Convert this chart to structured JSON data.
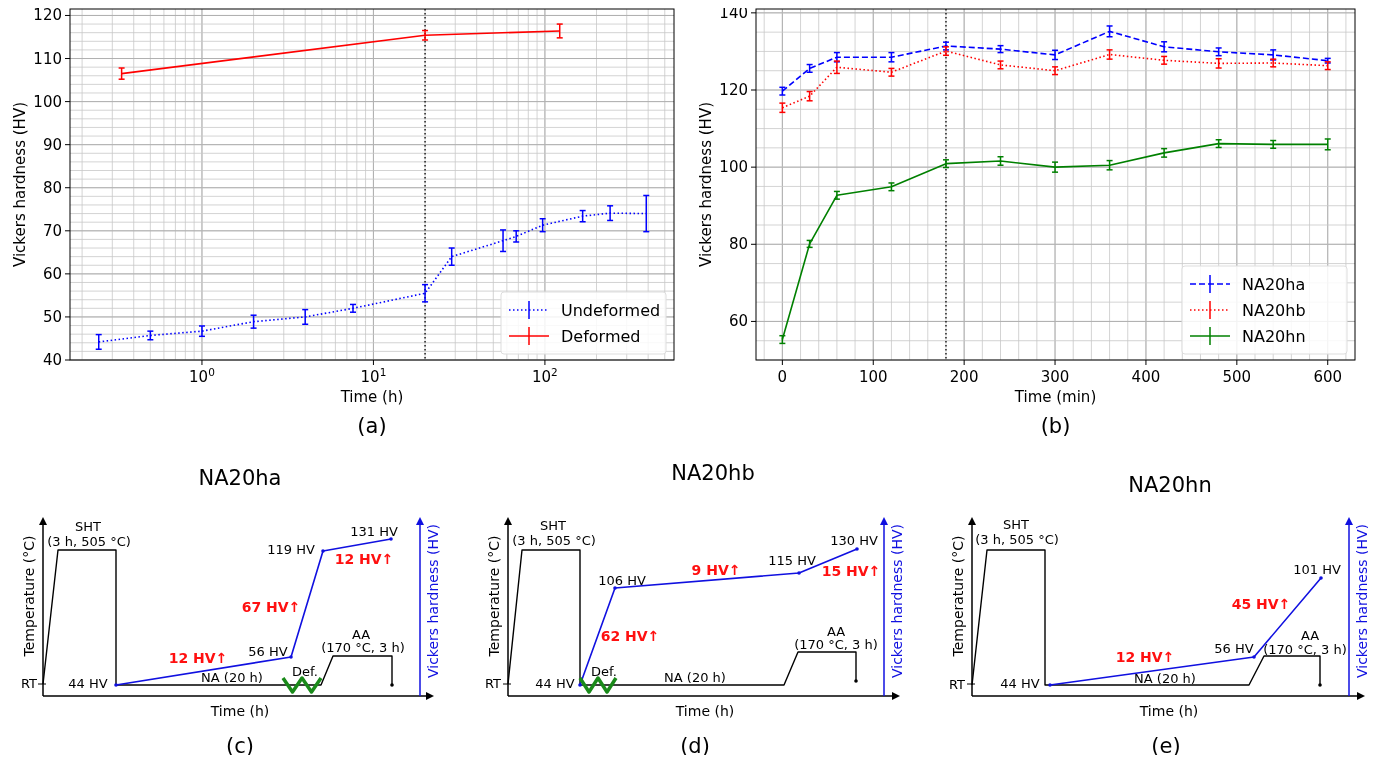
{
  "chart_data": [
    {
      "type": "line",
      "xlabel": "Time (h)",
      "ylabel": "Vickers hardness (HV)",
      "log": "x",
      "xlim": [
        0.17,
        566
      ],
      "ylim": [
        40,
        121.5
      ],
      "xticks": [
        {
          "value": 1,
          "label": "10$^{0}$"
        },
        {
          "value": 10,
          "label": "10$^{1}$"
        },
        {
          "value": 100,
          "label": "10$^{2}$"
        }
      ],
      "yticks": [
        40,
        50,
        60,
        70,
        80,
        90,
        100,
        110,
        120
      ],
      "grid": true,
      "legend": "bottom right",
      "marker": "none",
      "series": [
        {
          "name": "Undeformed",
          "color": "#0000ff",
          "line_style": "dotted",
          "x": [
            0.25,
            0.5,
            1,
            2,
            4,
            7.6,
            20,
            28.6,
            57,
            68,
            97,
            166,
            240,
            390
          ],
          "values": [
            44.2,
            45.7,
            46.7,
            48.9,
            50,
            52,
            55.5,
            64,
            67.7,
            68.7,
            71.3,
            73.4,
            74.1,
            74
          ],
          "errors": [
            1.7,
            1,
            1.2,
            1.5,
            1.7,
            0.9,
            2,
            2,
            2.5,
            1.3,
            1.5,
            1.3,
            1.7,
            4.2
          ]
        },
        {
          "name": "Deformed",
          "color": "#ff0000",
          "line_style": "solid",
          "x": [
            0.34,
            20,
            122
          ],
          "values": [
            106.5,
            115.4,
            116.4
          ],
          "errors": [
            1.3,
            1.1,
            1.6
          ]
        }
      ],
      "ref_lines": [
        {
          "axis": "x",
          "value": 20,
          "color": "#000000",
          "line_style": "dotted"
        }
      ],
      "annotations": [
        "(a)"
      ]
    },
    {
      "type": "line",
      "xlabel": "Time (min)",
      "ylabel": "Vickers hardness (HV)",
      "xlim": [
        -29,
        630
      ],
      "ylim": [
        50,
        141
      ],
      "xticks": [
        0,
        100,
        200,
        300,
        400,
        500,
        600
      ],
      "yticks": [
        60,
        80,
        100,
        120,
        140
      ],
      "grid": true,
      "legend": "bottom right",
      "marker": "none",
      "x": [
        0,
        30,
        60,
        120,
        180,
        240,
        300,
        360,
        420,
        480,
        540,
        600
      ],
      "series": [
        {
          "name": "NA20ha",
          "color": "#0000ff",
          "line_style": "dashed",
          "values": [
            119.7,
            125.6,
            128.5,
            128.5,
            131.4,
            130.6,
            129.1,
            135.2,
            131.2,
            129.9,
            129.1,
            127.6
          ],
          "errors": [
            1,
            1,
            1.2,
            1.2,
            1,
            0.9,
            1.2,
            1.4,
            1.3,
            1,
            1.3,
            0.6
          ]
        },
        {
          "name": "NA20hb",
          "color": "#ff0000",
          "line_style": "dotted",
          "values": [
            115.4,
            118.4,
            125.9,
            124.6,
            130.1,
            126.5,
            125,
            129.2,
            127.7,
            126.9,
            127,
            126.3
          ],
          "errors": [
            1.2,
            1.2,
            1.6,
            1,
            1.1,
            1,
            1,
            1.2,
            1,
            1.2,
            1,
            1
          ]
        },
        {
          "name": "NA20hn",
          "color": "#008000",
          "line_style": "solid",
          "values": [
            55.3,
            80.1,
            92.7,
            94.9,
            100.9,
            101.6,
            100,
            100.5,
            103.7,
            106.1,
            105.9,
            105.9
          ],
          "errors": [
            1,
            0.9,
            1,
            1,
            1,
            1.1,
            1.3,
            1.2,
            1.1,
            1,
            1,
            1.4
          ]
        }
      ],
      "ref_lines": [
        {
          "axis": "x",
          "value": 180,
          "color": "#000000",
          "line_style": "dotted"
        }
      ],
      "annotations": [
        "(b)"
      ]
    },
    {
      "type": "other",
      "title": "NA20ha",
      "xlabel": "Time (h)",
      "ylabel": "Temperature (°C)",
      "y2label": "Vickers hardness (HV)",
      "annotations": [
        "SHT",
        "(3 h, 505 °C)",
        "RT",
        "44 HV",
        "NA (20 h)",
        "Def.",
        "56 HV",
        "119 HV",
        "131 HV",
        "12 HV↑",
        "67 HV↑",
        "12 HV↑",
        "AA",
        "(170 °C, 3 h)",
        "(c)"
      ]
    },
    {
      "type": "other",
      "title": "NA20hb",
      "xlabel": "Time (h)",
      "ylabel": "Temperature (°C)",
      "y2label": "Vickers hardness (HV)",
      "annotations": [
        "SHT",
        "(3 h, 505 °C)",
        "RT",
        "44 HV",
        "Def.",
        "NA (20 h)",
        "106 HV",
        "62 HV↑",
        "9 HV↑",
        "115 HV",
        "130 HV",
        "15 HV↑",
        "AA",
        "(170 °C, 3 h)",
        "(d)"
      ]
    },
    {
      "type": "other",
      "title": "NA20hn",
      "xlabel": "Time (h)",
      "ylabel": "Temperature (°C)",
      "y2label": "Vickers hardness (HV)",
      "annotations": [
        "SHT",
        "(3 h, 505 °C)",
        "RT",
        "44 HV",
        "NA (20 h)",
        "56 HV",
        "12 HV↑",
        "45 HV↑",
        "101 HV",
        "AA",
        "(170 °C, 3 h)",
        "(e)"
      ]
    }
  ]
}
